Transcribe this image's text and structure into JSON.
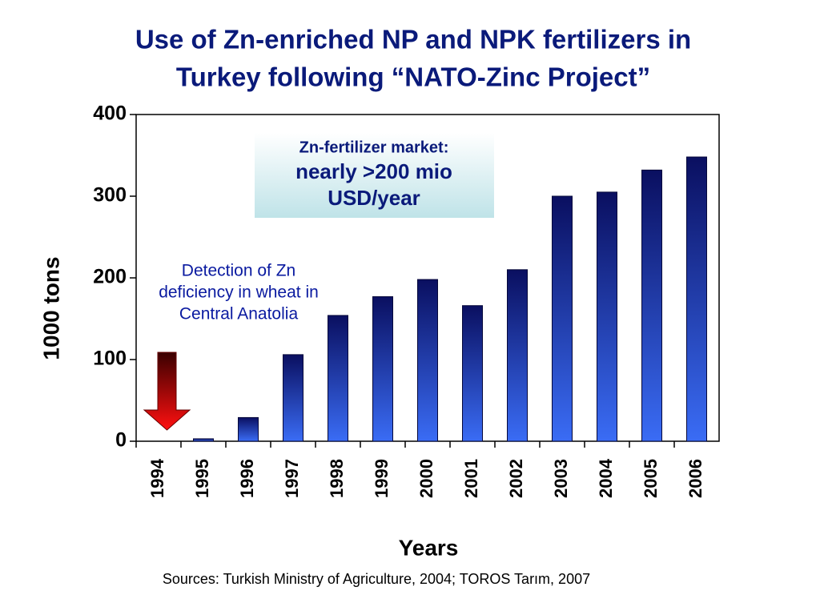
{
  "chart_data": {
    "type": "bar",
    "title": [
      "Use of Zn-enriched NP and NPK fertilizers in",
      "Turkey following “NATO-Zinc Project”"
    ],
    "y_label": "1000 tons",
    "x_label": "Years",
    "categories": [
      "1994",
      "1995",
      "1996",
      "1997",
      "1998",
      "1999",
      "2000",
      "2001",
      "2002",
      "2003",
      "2004",
      "2005",
      "2006"
    ],
    "values": [
      0,
      3,
      29,
      106,
      154,
      177,
      198,
      166,
      210,
      300,
      305,
      332,
      348
    ],
    "color": "#2a50d0",
    "ylim": [
      0,
      400
    ],
    "yticks": [
      0,
      100,
      200,
      300,
      400
    ],
    "annotations": [
      {
        "text": [
          "Zn-fertilizer market:",
          "nearly >200 mio",
          "USD/year"
        ]
      },
      {
        "text": [
          "Detection of Zn",
          "deficiency in wheat in",
          "Central Anatolia"
        ]
      }
    ],
    "source": "Sources: Turkish Ministry of Agriculture, 2004; TOROS Tarım, 2007"
  }
}
